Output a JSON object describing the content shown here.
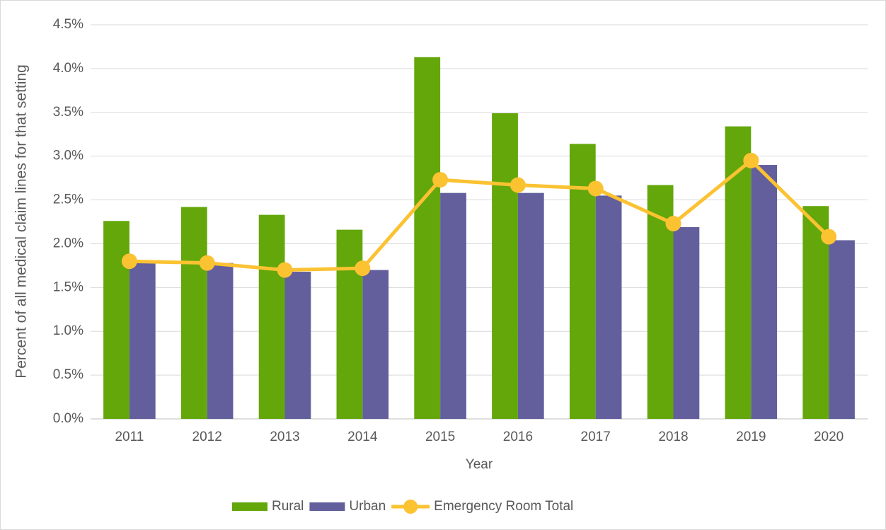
{
  "chart_data": {
    "type": "bar",
    "x_label": "Year",
    "y_label": "Percent of all medical claim lines for that setting",
    "categories": [
      "2011",
      "2012",
      "2013",
      "2014",
      "2015",
      "2016",
      "2017",
      "2018",
      "2019",
      "2020"
    ],
    "series": [
      {
        "name": "Rural",
        "type": "bar",
        "color": "#63a70a",
        "values": [
          2.26,
          2.42,
          2.33,
          2.16,
          4.13,
          3.49,
          3.14,
          2.67,
          3.34,
          2.43
        ]
      },
      {
        "name": "Urban",
        "type": "bar",
        "color": "#635f9c",
        "values": [
          1.79,
          1.78,
          1.68,
          1.7,
          2.58,
          2.58,
          2.55,
          2.19,
          2.9,
          2.04
        ]
      },
      {
        "name": "Emergency Room Total",
        "type": "line",
        "color": "#fbc232",
        "values": [
          1.8,
          1.78,
          1.7,
          1.72,
          2.73,
          2.67,
          2.63,
          2.23,
          2.95,
          2.08
        ]
      }
    ],
    "ylim": [
      0,
      4.5
    ],
    "yticks": [
      {
        "value": 0,
        "label": "0.0%"
      },
      {
        "value": 0.5,
        "label": "0.5%"
      },
      {
        "value": 1,
        "label": "1.0%"
      },
      {
        "value": 1.5,
        "label": "1.5%"
      },
      {
        "value": 2,
        "label": "2.0%"
      },
      {
        "value": 2.5,
        "label": "2.5%"
      },
      {
        "value": 3,
        "label": "3.0%"
      },
      {
        "value": 3.5,
        "label": "3.5%"
      },
      {
        "value": 4,
        "label": "4.0%"
      },
      {
        "value": 4.5,
        "label": "4.5%"
      }
    ],
    "grid": true,
    "legend": "bottom"
  }
}
